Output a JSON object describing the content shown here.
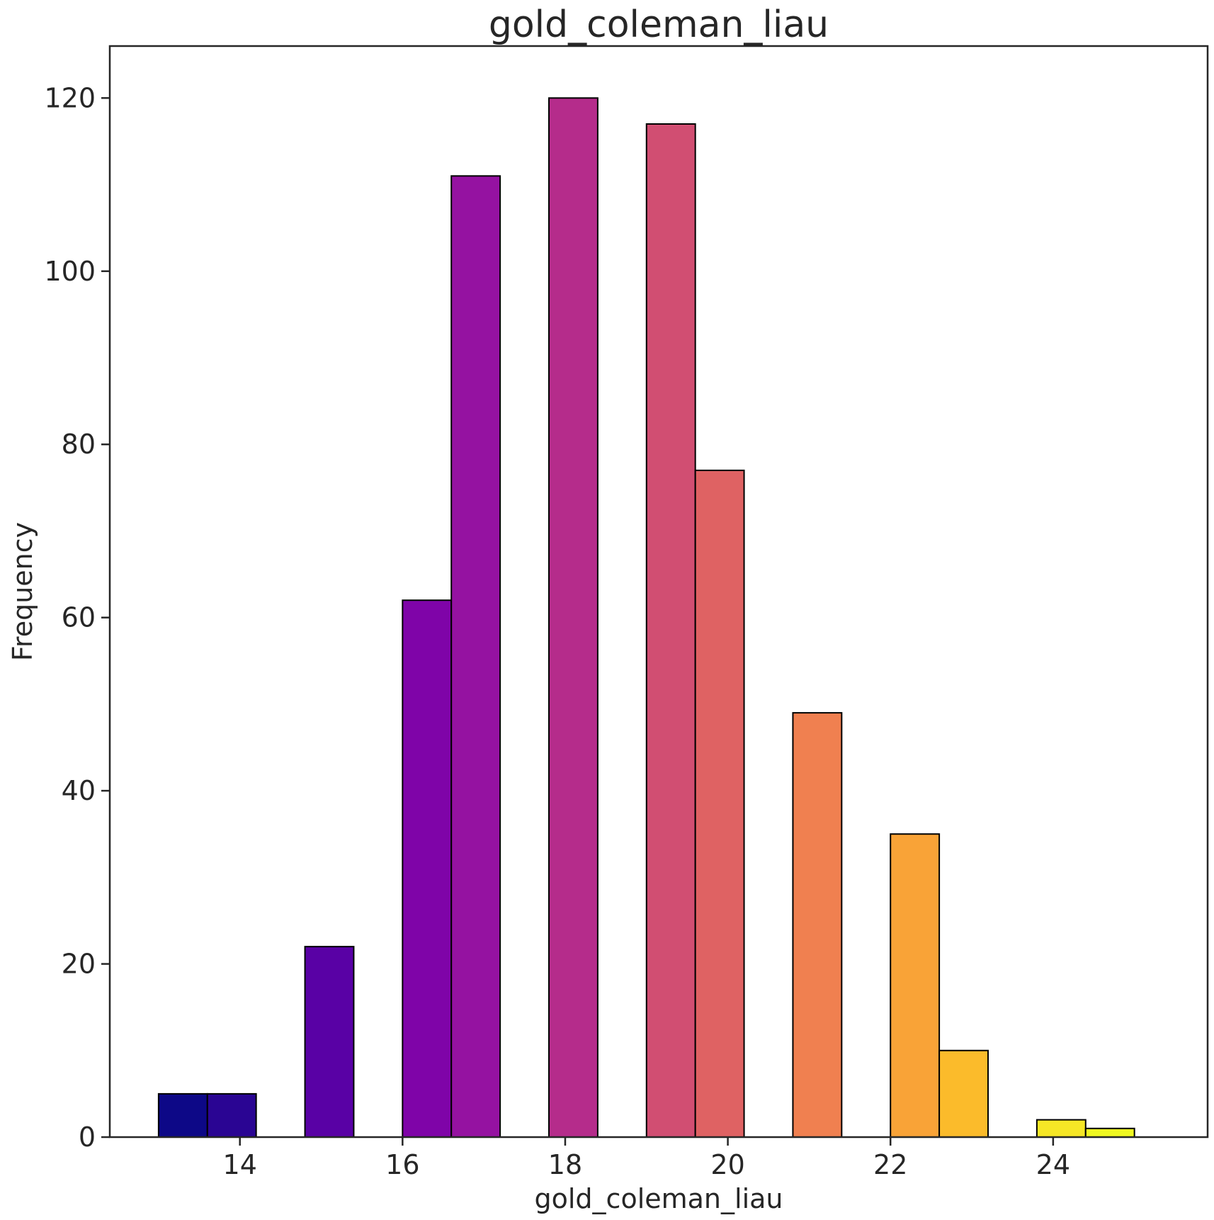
{
  "chart_data": {
    "type": "bar",
    "title": "gold_coleman_liau",
    "xlabel": "gold_coleman_liau",
    "ylabel": "Frequency",
    "xlim": [
      12.4,
      25.9
    ],
    "ylim": [
      0,
      126
    ],
    "xticks": [
      14,
      16,
      18,
      20,
      22,
      24
    ],
    "yticks": [
      0,
      20,
      40,
      60,
      80,
      100,
      120
    ],
    "grid": false,
    "bins": [
      {
        "x0": 13.0,
        "x1": 13.6,
        "value": 5,
        "color": "#0d0887"
      },
      {
        "x0": 13.6,
        "x1": 14.2,
        "value": 5,
        "color": "#2a0593"
      },
      {
        "x0": 14.8,
        "x1": 15.4,
        "value": 22,
        "color": "#5901a5"
      },
      {
        "x0": 16.0,
        "x1": 16.6,
        "value": 62,
        "color": "#7f04a8"
      },
      {
        "x0": 16.6,
        "x1": 17.2,
        "value": 111,
        "color": "#9512a1"
      },
      {
        "x0": 17.8,
        "x1": 18.4,
        "value": 120,
        "color": "#b52c8b"
      },
      {
        "x0": 19.0,
        "x1": 19.6,
        "value": 117,
        "color": "#d14e72"
      },
      {
        "x0": 19.6,
        "x1": 20.2,
        "value": 77,
        "color": "#df6263"
      },
      {
        "x0": 20.8,
        "x1": 21.4,
        "value": 49,
        "color": "#f08050"
      },
      {
        "x0": 22.0,
        "x1": 22.6,
        "value": 35,
        "color": "#f9a337"
      },
      {
        "x0": 22.6,
        "x1": 23.2,
        "value": 10,
        "color": "#fbbb2b"
      },
      {
        "x0": 23.8,
        "x1": 24.4,
        "value": 2,
        "color": "#f6e726"
      },
      {
        "x0": 24.4,
        "x1": 25.0,
        "value": 1,
        "color": "#f0f921"
      }
    ]
  }
}
